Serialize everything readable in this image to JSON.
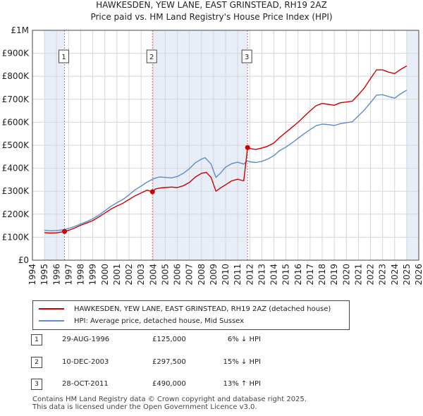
{
  "chart_data": {
    "type": "line",
    "title": "HAWKESDEN, YEW LANE, EAST GRINSTEAD, RH19 2AZ",
    "subtitle": "Price paid vs. HM Land Registry's House Price Index (HPI)",
    "x_ticks": [
      "1994",
      "1995",
      "1996",
      "1997",
      "1998",
      "1999",
      "2000",
      "2001",
      "2002",
      "2003",
      "2004",
      "2005",
      "2006",
      "2007",
      "2008",
      "2009",
      "2010",
      "2011",
      "2012",
      "2013",
      "2014",
      "2015",
      "2016",
      "2017",
      "2018",
      "2019",
      "2020",
      "2021",
      "2022",
      "2023",
      "2024",
      "2025",
      "2026"
    ],
    "y_ticks": [
      "£0",
      "£100K",
      "£200K",
      "£300K",
      "£400K",
      "£500K",
      "£600K",
      "£700K",
      "£800K",
      "£900K",
      "£1M"
    ],
    "xlim": [
      1994,
      2026
    ],
    "ylim": [
      0,
      1000000
    ],
    "colors": {
      "property": "#cc0000",
      "hpi": "#5b8ccc",
      "shade": "#e8eef8",
      "marker_line": "#e06666"
    },
    "series": [
      {
        "name": "HAWKESDEN, YEW LANE, EAST GRINSTEAD, RH19 2AZ (detached house)",
        "points": [
          [
            1995.0,
            120000
          ],
          [
            1995.5,
            118000
          ],
          [
            1996.0,
            119000
          ],
          [
            1996.66,
            125000
          ],
          [
            1997.0,
            130000
          ],
          [
            1997.5,
            140000
          ],
          [
            1998.0,
            152000
          ],
          [
            1998.5,
            162000
          ],
          [
            1999.0,
            172000
          ],
          [
            1999.5,
            188000
          ],
          [
            2000.0,
            205000
          ],
          [
            2000.5,
            222000
          ],
          [
            2001.0,
            236000
          ],
          [
            2001.5,
            248000
          ],
          [
            2002.0,
            264000
          ],
          [
            2002.5,
            280000
          ],
          [
            2003.0,
            292000
          ],
          [
            2003.5,
            305000
          ],
          [
            2003.94,
            297500
          ],
          [
            2004.2,
            310000
          ],
          [
            2004.6,
            314000
          ],
          [
            2005.0,
            316000
          ],
          [
            2005.5,
            318000
          ],
          [
            2006.0,
            316000
          ],
          [
            2006.5,
            324000
          ],
          [
            2007.0,
            338000
          ],
          [
            2007.5,
            362000
          ],
          [
            2008.0,
            378000
          ],
          [
            2008.4,
            382000
          ],
          [
            2008.8,
            360000
          ],
          [
            2009.2,
            300000
          ],
          [
            2009.6,
            315000
          ],
          [
            2010.0,
            328000
          ],
          [
            2010.5,
            345000
          ],
          [
            2011.0,
            352000
          ],
          [
            2011.5,
            345000
          ],
          [
            2011.82,
            490000
          ],
          [
            2012.0,
            486000
          ],
          [
            2012.5,
            482000
          ],
          [
            2013.0,
            488000
          ],
          [
            2013.5,
            496000
          ],
          [
            2014.0,
            510000
          ],
          [
            2014.5,
            535000
          ],
          [
            2015.0,
            556000
          ],
          [
            2015.5,
            578000
          ],
          [
            2016.0,
            600000
          ],
          [
            2016.5,
            625000
          ],
          [
            2017.0,
            650000
          ],
          [
            2017.5,
            672000
          ],
          [
            2018.0,
            682000
          ],
          [
            2018.5,
            678000
          ],
          [
            2019.0,
            674000
          ],
          [
            2019.5,
            685000
          ],
          [
            2020.0,
            688000
          ],
          [
            2020.5,
            692000
          ],
          [
            2021.0,
            720000
          ],
          [
            2021.5,
            750000
          ],
          [
            2022.0,
            790000
          ],
          [
            2022.5,
            828000
          ],
          [
            2023.0,
            828000
          ],
          [
            2023.5,
            818000
          ],
          [
            2024.0,
            812000
          ],
          [
            2024.5,
            830000
          ],
          [
            2025.0,
            845000
          ]
        ]
      },
      {
        "name": "HPI: Average price, detached house, Mid Sussex",
        "points": [
          [
            1995.0,
            130000
          ],
          [
            1995.5,
            128000
          ],
          [
            1996.0,
            129000
          ],
          [
            1996.66,
            133000
          ],
          [
            1997.0,
            138000
          ],
          [
            1997.5,
            147000
          ],
          [
            1998.0,
            158000
          ],
          [
            1998.5,
            168000
          ],
          [
            1999.0,
            180000
          ],
          [
            1999.5,
            196000
          ],
          [
            2000.0,
            215000
          ],
          [
            2000.5,
            234000
          ],
          [
            2001.0,
            250000
          ],
          [
            2001.5,
            264000
          ],
          [
            2002.0,
            284000
          ],
          [
            2002.5,
            306000
          ],
          [
            2003.0,
            322000
          ],
          [
            2003.5,
            340000
          ],
          [
            2004.0,
            354000
          ],
          [
            2004.5,
            362000
          ],
          [
            2005.0,
            360000
          ],
          [
            2005.5,
            358000
          ],
          [
            2006.0,
            364000
          ],
          [
            2006.5,
            378000
          ],
          [
            2007.0,
            398000
          ],
          [
            2007.5,
            424000
          ],
          [
            2008.0,
            440000
          ],
          [
            2008.3,
            446000
          ],
          [
            2008.8,
            418000
          ],
          [
            2009.2,
            360000
          ],
          [
            2009.6,
            380000
          ],
          [
            2010.0,
            405000
          ],
          [
            2010.5,
            420000
          ],
          [
            2011.0,
            426000
          ],
          [
            2011.5,
            418000
          ],
          [
            2011.82,
            432000
          ],
          [
            2012.0,
            428000
          ],
          [
            2012.5,
            425000
          ],
          [
            2013.0,
            430000
          ],
          [
            2013.5,
            440000
          ],
          [
            2014.0,
            455000
          ],
          [
            2014.5,
            478000
          ],
          [
            2015.0,
            492000
          ],
          [
            2015.5,
            510000
          ],
          [
            2016.0,
            530000
          ],
          [
            2016.5,
            550000
          ],
          [
            2017.0,
            568000
          ],
          [
            2017.5,
            585000
          ],
          [
            2018.0,
            592000
          ],
          [
            2018.5,
            590000
          ],
          [
            2019.0,
            586000
          ],
          [
            2019.5,
            594000
          ],
          [
            2020.0,
            598000
          ],
          [
            2020.5,
            602000
          ],
          [
            2021.0,
            628000
          ],
          [
            2021.5,
            654000
          ],
          [
            2022.0,
            685000
          ],
          [
            2022.5,
            718000
          ],
          [
            2023.0,
            720000
          ],
          [
            2023.5,
            712000
          ],
          [
            2024.0,
            705000
          ],
          [
            2024.5,
            724000
          ],
          [
            2025.0,
            740000
          ]
        ]
      }
    ],
    "sale_markers": [
      {
        "label": "1",
        "x": 1996.66,
        "y": 125000
      },
      {
        "label": "2",
        "x": 2003.94,
        "y": 297500
      },
      {
        "label": "3",
        "x": 2011.82,
        "y": 490000
      }
    ],
    "shaded_ranges": [
      [
        1995.0,
        1996.66
      ],
      [
        2003.94,
        2011.82
      ],
      [
        2025.0,
        2026.0
      ]
    ]
  },
  "legend": {
    "property_label": "HAWKESDEN, YEW LANE, EAST GRINSTEAD, RH19 2AZ (detached house)",
    "hpi_label": "HPI: Average price, detached house, Mid Sussex"
  },
  "sales": [
    {
      "num": "1",
      "date": "29-AUG-1996",
      "price": "£125,000",
      "hpi": "6% ↓ HPI"
    },
    {
      "num": "2",
      "date": "10-DEC-2003",
      "price": "£297,500",
      "hpi": "15% ↓ HPI"
    },
    {
      "num": "3",
      "date": "28-OCT-2011",
      "price": "£490,000",
      "hpi": "13% ↑ HPI"
    }
  ],
  "footer": {
    "line1": "Contains HM Land Registry data © Crown copyright and database right 2025.",
    "line2": "This data is licensed under the Open Government Licence v3.0."
  }
}
